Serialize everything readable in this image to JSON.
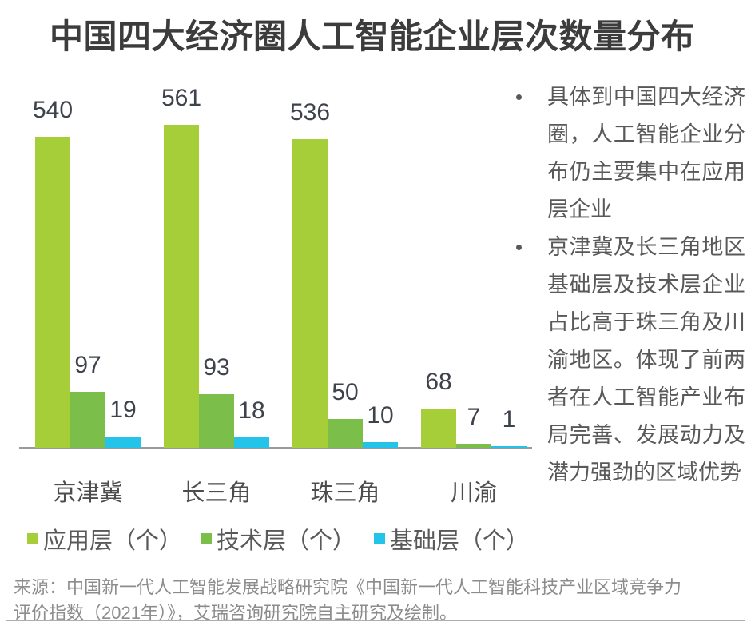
{
  "title": "中国四大经济圈人工智能企业层次数量分布",
  "chart_data": {
    "type": "bar",
    "categories": [
      "京津冀",
      "长三角",
      "珠三角",
      "川渝"
    ],
    "series": [
      {
        "name": "应用层（个）",
        "color": "#A6CE39",
        "values": [
          540,
          561,
          536,
          68
        ]
      },
      {
        "name": "技术层（个）",
        "color": "#7CBE4A",
        "values": [
          97,
          93,
          50,
          7
        ]
      },
      {
        "name": "基础层（个）",
        "color": "#23C3EA",
        "values": [
          19,
          18,
          10,
          1
        ]
      }
    ],
    "title": "中国四大经济圈人工智能企业层次数量分布",
    "xlabel": "",
    "ylabel": "",
    "ylim": [
      0,
      561
    ],
    "grid": false,
    "y_axis_visible": false,
    "legend_position": "bottom",
    "value_labels": true
  },
  "insights": {
    "bullets": [
      "具体到中国四大经济圈，人工智能企业分布仍主要集中在应用层企业",
      "京津冀及长三角地区基础层及技术层企业占比高于珠三角及川渝地区。体现了前两者在人工智能产业布局完善、发展动力及潜力强劲的区域优势"
    ]
  },
  "source": "来源：中国新一代人工智能发展战略研究院《中国新一代人工智能科技产业区域竞争力评价指数（2021年）》，艾瑞咨询研究院自主研究及绘制。",
  "colors": {
    "app_layer": "#A6CE39",
    "tech_layer": "#7CBE4A",
    "base_layer": "#23C3EA",
    "title_text": "#3c3c3c",
    "value_text": "#3e424b",
    "body_text": "#595959",
    "source_text": "#8c8c8c",
    "axis_line": "#9b9b9b"
  }
}
